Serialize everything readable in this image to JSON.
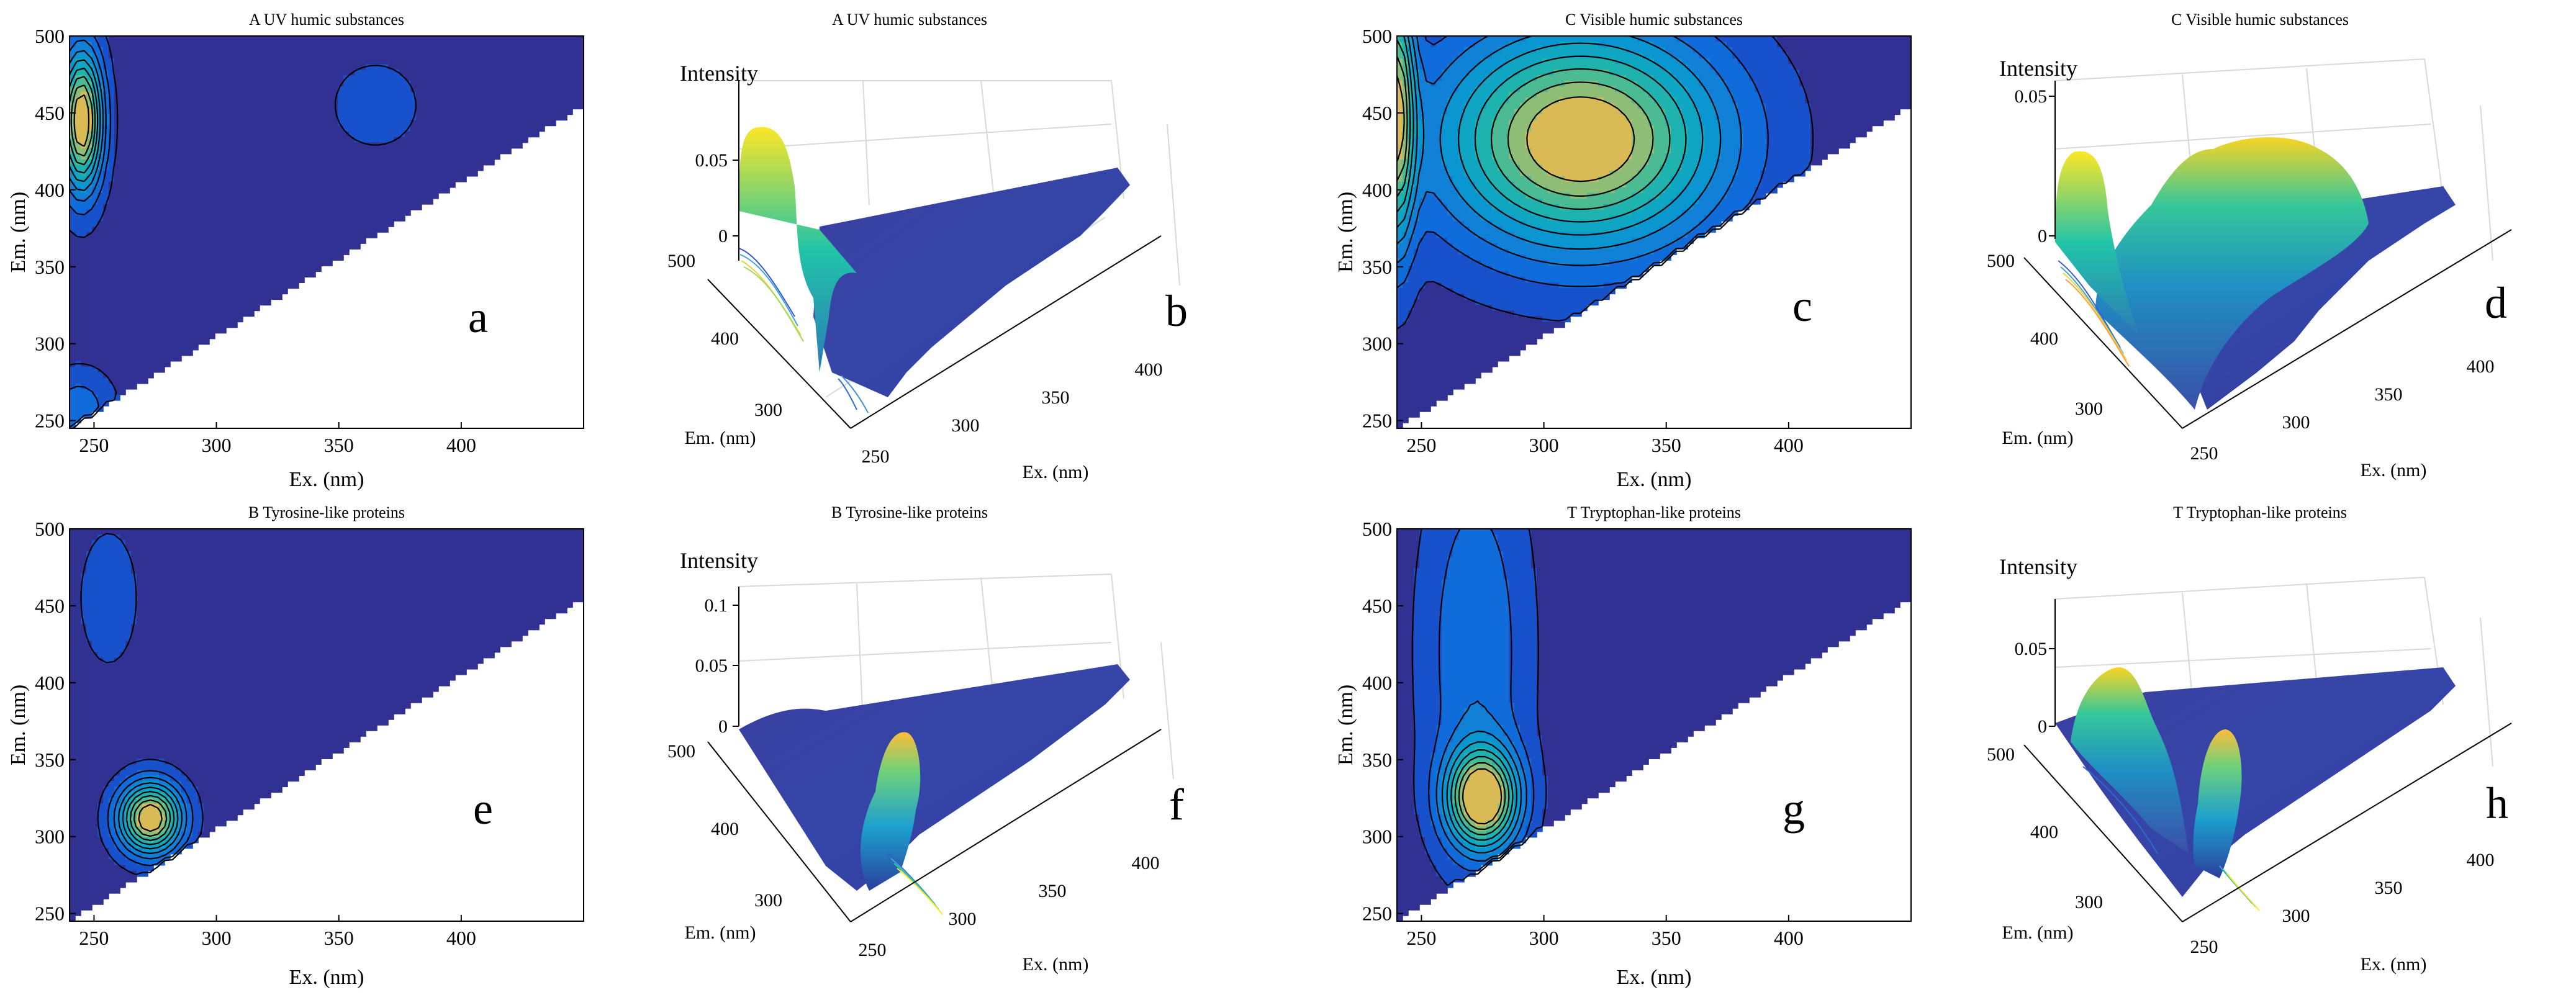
{
  "figure": {
    "panels": [
      {
        "id": "a",
        "view": "contour",
        "title": "A   UV humic substances",
        "letter": "a",
        "xlabel": "Ex. (nm)",
        "ylabel": "Em. (nm)"
      },
      {
        "id": "b",
        "view": "surface",
        "title": "A   UV humic substances",
        "letter": "b",
        "xlabel": "Ex. (nm)",
        "ylabel": "Em. (nm)",
        "zlabel": "Intensity"
      },
      {
        "id": "c",
        "view": "contour",
        "title": "C   Visible humic substances",
        "letter": "c",
        "xlabel": "Ex. (nm)",
        "ylabel": "Em. (nm)"
      },
      {
        "id": "d",
        "view": "surface",
        "title": "C   Visible humic substances",
        "letter": "d",
        "xlabel": "Ex. (nm)",
        "ylabel": "Em. (nm)",
        "zlabel": "Intensity"
      },
      {
        "id": "e",
        "view": "contour",
        "title": "B   Tyrosine-like proteins",
        "letter": "e",
        "xlabel": "Ex. (nm)",
        "ylabel": "Em. (nm)"
      },
      {
        "id": "f",
        "view": "surface",
        "title": "B   Tyrosine-like proteins",
        "letter": "f",
        "xlabel": "Ex. (nm)",
        "ylabel": "Em. (nm)",
        "zlabel": "Intensity"
      },
      {
        "id": "g",
        "view": "contour",
        "title": "T   Tryptophan-like proteins",
        "letter": "g",
        "xlabel": "Ex. (nm)",
        "ylabel": "Em. (nm)"
      },
      {
        "id": "h",
        "view": "surface",
        "title": "T   Tryptophan-like proteins",
        "letter": "h",
        "xlabel": "Ex. (nm)",
        "ylabel": "Em. (nm)",
        "zlabel": "Intensity"
      }
    ]
  },
  "chart_data": [
    {
      "type": "heatmap",
      "panel": "a",
      "title": "A   UV humic substances",
      "xlabel": "Ex. (nm)",
      "ylabel": "Em. (nm)",
      "xlim": [
        240,
        450
      ],
      "ylim": [
        245,
        500
      ],
      "xticks": [
        250,
        300,
        350,
        400
      ],
      "yticks": [
        250,
        300,
        350,
        400,
        450,
        500
      ],
      "xtick_labels": [
        "250",
        "300",
        "350",
        "400"
      ],
      "ytick_labels": [
        "250",
        "300",
        "350",
        "400",
        "450",
        "500"
      ],
      "peaks": [
        {
          "ex": 245,
          "em": 445,
          "sx": 6,
          "sy": 32,
          "amp": 1.0
        },
        {
          "ex": 365,
          "em": 455,
          "sx": 14,
          "sy": 22,
          "amp": 0.12
        },
        {
          "ex": 244,
          "em": 258,
          "sx": 10,
          "sy": 18,
          "amp": 0.22
        }
      ],
      "levels": [
        0.1,
        0.2,
        0.3,
        0.4,
        0.5,
        0.6,
        0.7,
        0.8,
        0.9
      ]
    },
    {
      "type": "surface",
      "panel": "b",
      "title": "A   UV humic substances",
      "xlabel": "Ex. (nm)",
      "ylabel": "Em. (nm)",
      "zlabel": "Intensity",
      "xticks": [
        250,
        300,
        350,
        400
      ],
      "yticks": [
        300,
        400,
        500
      ],
      "zticks": [
        0,
        0.05
      ],
      "xtick_labels": [
        "250",
        "300",
        "350",
        "400"
      ],
      "ytick_labels": [
        "300",
        "400",
        "500"
      ],
      "ztick_labels": [
        "0",
        "0.05"
      ],
      "zmax": 0.07,
      "zticks_max": 0.075
    },
    {
      "type": "heatmap",
      "panel": "c",
      "title": "C   Visible humic substances",
      "xlabel": "Ex. (nm)",
      "ylabel": "Em. (nm)",
      "xlim": [
        240,
        450
      ],
      "ylim": [
        245,
        500
      ],
      "xticks": [
        250,
        300,
        350,
        400
      ],
      "yticks": [
        250,
        300,
        350,
        400,
        450,
        500
      ],
      "xtick_labels": [
        "250",
        "300",
        "350",
        "400"
      ],
      "ytick_labels": [
        "250",
        "300",
        "350",
        "400",
        "450",
        "500"
      ],
      "peaks": [
        {
          "ex": 315,
          "em": 433,
          "sx": 40,
          "sy": 50,
          "amp": 1.0
        },
        {
          "ex": 240,
          "em": 450,
          "sx": 5,
          "sy": 60,
          "amp": 0.8
        }
      ],
      "levels": [
        0.1,
        0.2,
        0.3,
        0.4,
        0.5,
        0.6,
        0.7,
        0.8,
        0.9
      ]
    },
    {
      "type": "surface",
      "panel": "d",
      "title": "C   Visible humic substances",
      "xlabel": "Ex. (nm)",
      "ylabel": "Em. (nm)",
      "zlabel": "Intensity",
      "xticks": [
        250,
        300,
        350,
        400
      ],
      "yticks": [
        300,
        400,
        500
      ],
      "zticks": [
        0,
        0.05
      ],
      "xtick_labels": [
        "250",
        "300",
        "350",
        "400"
      ],
      "ytick_labels": [
        "300",
        "400",
        "500"
      ],
      "ztick_labels": [
        "0",
        "0.05"
      ],
      "zmax": 0.05,
      "zticks_max": 0.05
    },
    {
      "type": "heatmap",
      "panel": "e",
      "title": "B   Tyrosine-like proteins",
      "xlabel": "Ex. (nm)",
      "ylabel": "Em. (nm)",
      "xlim": [
        240,
        450
      ],
      "ylim": [
        245,
        500
      ],
      "xticks": [
        250,
        300,
        350,
        400
      ],
      "yticks": [
        250,
        300,
        350,
        400,
        450,
        500
      ],
      "xtick_labels": [
        "250",
        "300",
        "350",
        "400"
      ],
      "ytick_labels": [
        "250",
        "300",
        "350",
        "400",
        "450",
        "500"
      ],
      "peaks": [
        {
          "ex": 273,
          "em": 312,
          "sx": 9,
          "sy": 16,
          "amp": 1.0
        },
        {
          "ex": 256,
          "em": 455,
          "sx": 8,
          "sy": 30,
          "amp": 0.16
        }
      ],
      "levels": [
        0.1,
        0.2,
        0.3,
        0.4,
        0.5,
        0.6,
        0.7,
        0.8,
        0.9
      ]
    },
    {
      "type": "surface",
      "panel": "f",
      "title": "B   Tyrosine-like proteins",
      "xlabel": "Ex. (nm)",
      "ylabel": "Em. (nm)",
      "zlabel": "Intensity",
      "xticks": [
        250,
        300,
        350,
        400
      ],
      "yticks": [
        300,
        400,
        500
      ],
      "zticks": [
        0,
        0.05,
        0.1
      ],
      "xtick_labels": [
        "250",
        "300",
        "350",
        "400"
      ],
      "ytick_labels": [
        "300",
        "400",
        "500"
      ],
      "ztick_labels": [
        "0",
        "0.05",
        "0.1"
      ],
      "zmax": 0.1,
      "zticks_max": 0.12
    },
    {
      "type": "heatmap",
      "panel": "g",
      "title": "T   Tryptophan-like proteins",
      "xlabel": "Ex. (nm)",
      "ylabel": "Em. (nm)",
      "xlim": [
        240,
        450
      ],
      "ylim": [
        245,
        500
      ],
      "xticks": [
        250,
        300,
        350,
        400
      ],
      "yticks": [
        250,
        300,
        350,
        400,
        450,
        500
      ],
      "xtick_labels": [
        "250",
        "300",
        "350",
        "400"
      ],
      "ytick_labels": [
        "250",
        "300",
        "350",
        "400",
        "450",
        "500"
      ],
      "peaks": [
        {
          "ex": 275,
          "em": 325,
          "sx": 10,
          "sy": 22,
          "amp": 1.0
        },
        {
          "ex": 272,
          "em": 420,
          "sx": 15,
          "sy": 90,
          "amp": 0.26
        }
      ],
      "levels": [
        0.1,
        0.2,
        0.3,
        0.4,
        0.5,
        0.6,
        0.7,
        0.8,
        0.9
      ]
    },
    {
      "type": "surface",
      "panel": "h",
      "title": "T   Tryptophan-like proteins",
      "xlabel": "Ex. (nm)",
      "ylabel": "Em. (nm)",
      "zlabel": "Intensity",
      "xticks": [
        250,
        300,
        350,
        400
      ],
      "yticks": [
        300,
        400,
        500
      ],
      "zticks": [
        0,
        0.05
      ],
      "xtick_labels": [
        "250",
        "300",
        "350",
        "400"
      ],
      "ytick_labels": [
        "300",
        "400",
        "500"
      ],
      "ztick_labels": [
        "0",
        "0.05"
      ],
      "zmax": 0.07,
      "zticks_max": 0.075
    }
  ]
}
